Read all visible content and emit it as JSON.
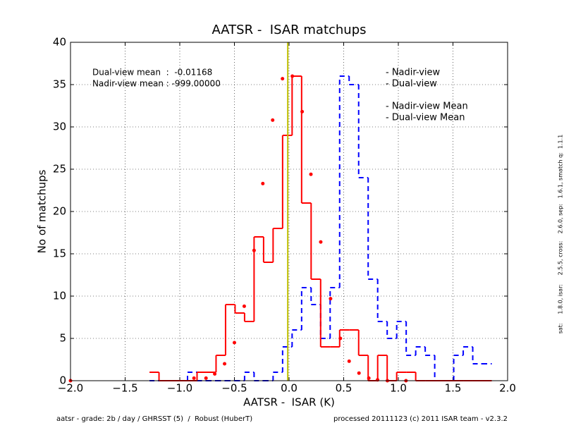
{
  "chart_data": {
    "type": "histogram",
    "title": "AATSR -  ISAR matchups",
    "x_label": "AATSR -  ISAR (K)",
    "y_label": "No of matchups",
    "bins": [
      -1.277,
      -1.19,
      -1.103,
      -1.016,
      -0.929,
      -0.842,
      -0.755,
      -0.668,
      -0.581,
      -0.494,
      -0.407,
      -0.32,
      -0.233,
      -0.146,
      -0.059,
      0.028,
      0.115,
      0.202,
      0.289,
      0.376,
      0.463,
      0.55,
      0.637,
      0.724,
      0.811,
      0.898,
      0.985,
      1.072,
      1.159,
      1.246,
      1.333,
      1.42,
      1.507,
      1.594,
      1.681,
      1.768,
      1.855
    ],
    "series": [
      {
        "name": "- Nadir-view",
        "color": "#0000ff",
        "dashed": true,
        "values": [
          0,
          0,
          0,
          0,
          1,
          0,
          0,
          0,
          0,
          0,
          1,
          0,
          0,
          1,
          4,
          6,
          11,
          9,
          5,
          11,
          36,
          35,
          24,
          12,
          7,
          5,
          7,
          3,
          4,
          3,
          0,
          0,
          3,
          4,
          2,
          2
        ]
      },
      {
        "name": "- Dual-view",
        "color": "#ff0000",
        "dashed": false,
        "values": [
          1,
          0,
          0,
          0,
          0,
          1,
          1,
          3,
          9,
          8,
          7,
          17,
          14,
          18,
          29,
          36,
          21,
          12,
          4,
          4,
          6,
          6,
          3,
          0,
          3,
          0,
          1,
          1,
          0,
          0,
          0,
          0,
          0,
          0,
          0,
          0
        ]
      }
    ],
    "points": {
      "color": "#ff0000",
      "x": [
        -2.0,
        -0.87,
        -0.76,
        -0.68,
        -0.59,
        -0.5,
        -0.41,
        -0.32,
        -0.24,
        -0.15,
        -0.06,
        0.03,
        0.12,
        0.2,
        0.29,
        0.38,
        0.47,
        0.55,
        0.64,
        0.73,
        0.81,
        0.9,
        1.07
      ],
      "y": [
        0,
        0.3,
        0.3,
        0.8,
        2,
        4.5,
        8.8,
        15.4,
        23.3,
        30.8,
        35.7,
        36,
        31.8,
        24.4,
        16.4,
        9.7,
        5,
        2.3,
        0.9,
        0.3,
        0.1,
        0,
        0
      ]
    },
    "mean_lines": [
      {
        "name": "- Nadir-view Mean",
        "color": "#bf00bf",
        "value": -999
      },
      {
        "name": "- Dual-view Mean",
        "color": "#bfbf00",
        "value": -0.01168
      }
    ],
    "annotations": [
      "Dual-view mean  :  -0.01168",
      "Nadir-view mean : -999.00000"
    ],
    "xlim": [
      -2.0,
      2.0
    ],
    "ylim": [
      0,
      40
    ],
    "xticks": [
      {
        "value": -2.0,
        "label": "−2.0"
      },
      {
        "value": -1.5,
        "label": "−1.5"
      },
      {
        "value": -1.0,
        "label": "−1.0"
      },
      {
        "value": -0.5,
        "label": "−0.5"
      },
      {
        "value": 0.0,
        "label": "0.0"
      },
      {
        "value": 0.5,
        "label": "0.5"
      },
      {
        "value": 1.0,
        "label": "1.0"
      },
      {
        "value": 1.5,
        "label": "1.5"
      },
      {
        "value": 2.0,
        "label": "2.0"
      }
    ],
    "yticks": [
      0,
      5,
      10,
      15,
      20,
      25,
      30,
      35,
      40
    ],
    "grid": true,
    "legend": "upper right",
    "footer_left": "aatsr - grade: 2b / day / GHRSST (5)  /  Robust (HuberT)",
    "footer_right": "processed 20111123 (c) 2011 ISAR team - v2.3.2",
    "side_note": "sat:     1.8.0, isar:     2.5.5, cross:    2.6.0, sep:   1.6.1, smatch q:  1.1.1"
  }
}
